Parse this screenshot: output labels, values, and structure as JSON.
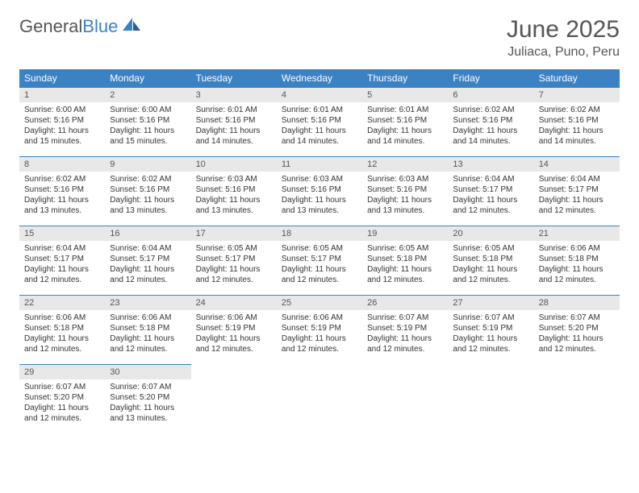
{
  "logo": {
    "text1": "General",
    "text2": "Blue"
  },
  "title": "June 2025",
  "location": "Juliaca, Puno, Peru",
  "colors": {
    "header_bg": "#3b82c4",
    "header_text": "#ffffff",
    "daynum_bg": "#e8e8e8",
    "border": "#3b82c4",
    "title_color": "#555555",
    "body_text": "#333333",
    "page_bg": "#ffffff"
  },
  "fonts": {
    "title_size": 30,
    "location_size": 16,
    "header_size": 12,
    "daynum_size": 11,
    "body_size": 10
  },
  "weekdays": [
    "Sunday",
    "Monday",
    "Tuesday",
    "Wednesday",
    "Thursday",
    "Friday",
    "Saturday"
  ],
  "weeks": [
    [
      {
        "n": "1",
        "sr": "Sunrise: 6:00 AM",
        "ss": "Sunset: 5:16 PM",
        "d1": "Daylight: 11 hours",
        "d2": "and 15 minutes."
      },
      {
        "n": "2",
        "sr": "Sunrise: 6:00 AM",
        "ss": "Sunset: 5:16 PM",
        "d1": "Daylight: 11 hours",
        "d2": "and 15 minutes."
      },
      {
        "n": "3",
        "sr": "Sunrise: 6:01 AM",
        "ss": "Sunset: 5:16 PM",
        "d1": "Daylight: 11 hours",
        "d2": "and 14 minutes."
      },
      {
        "n": "4",
        "sr": "Sunrise: 6:01 AM",
        "ss": "Sunset: 5:16 PM",
        "d1": "Daylight: 11 hours",
        "d2": "and 14 minutes."
      },
      {
        "n": "5",
        "sr": "Sunrise: 6:01 AM",
        "ss": "Sunset: 5:16 PM",
        "d1": "Daylight: 11 hours",
        "d2": "and 14 minutes."
      },
      {
        "n": "6",
        "sr": "Sunrise: 6:02 AM",
        "ss": "Sunset: 5:16 PM",
        "d1": "Daylight: 11 hours",
        "d2": "and 14 minutes."
      },
      {
        "n": "7",
        "sr": "Sunrise: 6:02 AM",
        "ss": "Sunset: 5:16 PM",
        "d1": "Daylight: 11 hours",
        "d2": "and 14 minutes."
      }
    ],
    [
      {
        "n": "8",
        "sr": "Sunrise: 6:02 AM",
        "ss": "Sunset: 5:16 PM",
        "d1": "Daylight: 11 hours",
        "d2": "and 13 minutes."
      },
      {
        "n": "9",
        "sr": "Sunrise: 6:02 AM",
        "ss": "Sunset: 5:16 PM",
        "d1": "Daylight: 11 hours",
        "d2": "and 13 minutes."
      },
      {
        "n": "10",
        "sr": "Sunrise: 6:03 AM",
        "ss": "Sunset: 5:16 PM",
        "d1": "Daylight: 11 hours",
        "d2": "and 13 minutes."
      },
      {
        "n": "11",
        "sr": "Sunrise: 6:03 AM",
        "ss": "Sunset: 5:16 PM",
        "d1": "Daylight: 11 hours",
        "d2": "and 13 minutes."
      },
      {
        "n": "12",
        "sr": "Sunrise: 6:03 AM",
        "ss": "Sunset: 5:16 PM",
        "d1": "Daylight: 11 hours",
        "d2": "and 13 minutes."
      },
      {
        "n": "13",
        "sr": "Sunrise: 6:04 AM",
        "ss": "Sunset: 5:17 PM",
        "d1": "Daylight: 11 hours",
        "d2": "and 12 minutes."
      },
      {
        "n": "14",
        "sr": "Sunrise: 6:04 AM",
        "ss": "Sunset: 5:17 PM",
        "d1": "Daylight: 11 hours",
        "d2": "and 12 minutes."
      }
    ],
    [
      {
        "n": "15",
        "sr": "Sunrise: 6:04 AM",
        "ss": "Sunset: 5:17 PM",
        "d1": "Daylight: 11 hours",
        "d2": "and 12 minutes."
      },
      {
        "n": "16",
        "sr": "Sunrise: 6:04 AM",
        "ss": "Sunset: 5:17 PM",
        "d1": "Daylight: 11 hours",
        "d2": "and 12 minutes."
      },
      {
        "n": "17",
        "sr": "Sunrise: 6:05 AM",
        "ss": "Sunset: 5:17 PM",
        "d1": "Daylight: 11 hours",
        "d2": "and 12 minutes."
      },
      {
        "n": "18",
        "sr": "Sunrise: 6:05 AM",
        "ss": "Sunset: 5:17 PM",
        "d1": "Daylight: 11 hours",
        "d2": "and 12 minutes."
      },
      {
        "n": "19",
        "sr": "Sunrise: 6:05 AM",
        "ss": "Sunset: 5:18 PM",
        "d1": "Daylight: 11 hours",
        "d2": "and 12 minutes."
      },
      {
        "n": "20",
        "sr": "Sunrise: 6:05 AM",
        "ss": "Sunset: 5:18 PM",
        "d1": "Daylight: 11 hours",
        "d2": "and 12 minutes."
      },
      {
        "n": "21",
        "sr": "Sunrise: 6:06 AM",
        "ss": "Sunset: 5:18 PM",
        "d1": "Daylight: 11 hours",
        "d2": "and 12 minutes."
      }
    ],
    [
      {
        "n": "22",
        "sr": "Sunrise: 6:06 AM",
        "ss": "Sunset: 5:18 PM",
        "d1": "Daylight: 11 hours",
        "d2": "and 12 minutes."
      },
      {
        "n": "23",
        "sr": "Sunrise: 6:06 AM",
        "ss": "Sunset: 5:18 PM",
        "d1": "Daylight: 11 hours",
        "d2": "and 12 minutes."
      },
      {
        "n": "24",
        "sr": "Sunrise: 6:06 AM",
        "ss": "Sunset: 5:19 PM",
        "d1": "Daylight: 11 hours",
        "d2": "and 12 minutes."
      },
      {
        "n": "25",
        "sr": "Sunrise: 6:06 AM",
        "ss": "Sunset: 5:19 PM",
        "d1": "Daylight: 11 hours",
        "d2": "and 12 minutes."
      },
      {
        "n": "26",
        "sr": "Sunrise: 6:07 AM",
        "ss": "Sunset: 5:19 PM",
        "d1": "Daylight: 11 hours",
        "d2": "and 12 minutes."
      },
      {
        "n": "27",
        "sr": "Sunrise: 6:07 AM",
        "ss": "Sunset: 5:19 PM",
        "d1": "Daylight: 11 hours",
        "d2": "and 12 minutes."
      },
      {
        "n": "28",
        "sr": "Sunrise: 6:07 AM",
        "ss": "Sunset: 5:20 PM",
        "d1": "Daylight: 11 hours",
        "d2": "and 12 minutes."
      }
    ],
    [
      {
        "n": "29",
        "sr": "Sunrise: 6:07 AM",
        "ss": "Sunset: 5:20 PM",
        "d1": "Daylight: 11 hours",
        "d2": "and 12 minutes."
      },
      {
        "n": "30",
        "sr": "Sunrise: 6:07 AM",
        "ss": "Sunset: 5:20 PM",
        "d1": "Daylight: 11 hours",
        "d2": "and 13 minutes."
      },
      {
        "empty": true
      },
      {
        "empty": true
      },
      {
        "empty": true
      },
      {
        "empty": true
      },
      {
        "empty": true
      }
    ]
  ]
}
